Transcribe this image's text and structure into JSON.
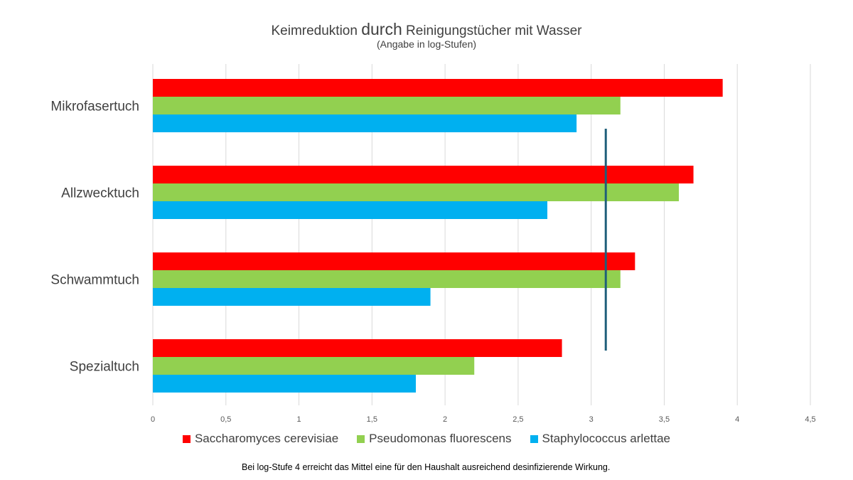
{
  "chart_data": {
    "type": "bar",
    "orientation": "horizontal",
    "title_parts": [
      "Keimreduktion ",
      "durch",
      " Reinigungstücher mit Wasser"
    ],
    "subtitle": "(Angabe in log-Stufen)",
    "categories": [
      "Mikrofasertuch",
      "Allzwecktuch",
      "Schwammtuch",
      "Spezialtuch"
    ],
    "series": [
      {
        "name": "Saccharomyces cerevisiae",
        "color": "#ff0000",
        "values": [
          3.9,
          3.7,
          3.3,
          2.8
        ]
      },
      {
        "name": "Pseudomonas fluorescens",
        "color": "#92d050",
        "values": [
          3.2,
          3.6,
          3.2,
          2.2
        ]
      },
      {
        "name": "Staphylococcus arlettae",
        "color": "#00b0f0",
        "values": [
          2.9,
          2.7,
          1.9,
          1.8
        ]
      }
    ],
    "xlim": [
      0,
      4.5
    ],
    "xticks": [
      "0",
      "0,5",
      "1",
      "1,5",
      "2",
      "2,5",
      "3",
      "3,5",
      "4",
      "4,5"
    ],
    "reference_line": {
      "x": 3.1,
      "color": "#1f5f7a"
    },
    "grid": true,
    "legend": "bottom"
  },
  "footnote": "Bei log-Stufe 4 erreicht das Mittel eine für den Haushalt ausreichend desinfizierende Wirkung."
}
